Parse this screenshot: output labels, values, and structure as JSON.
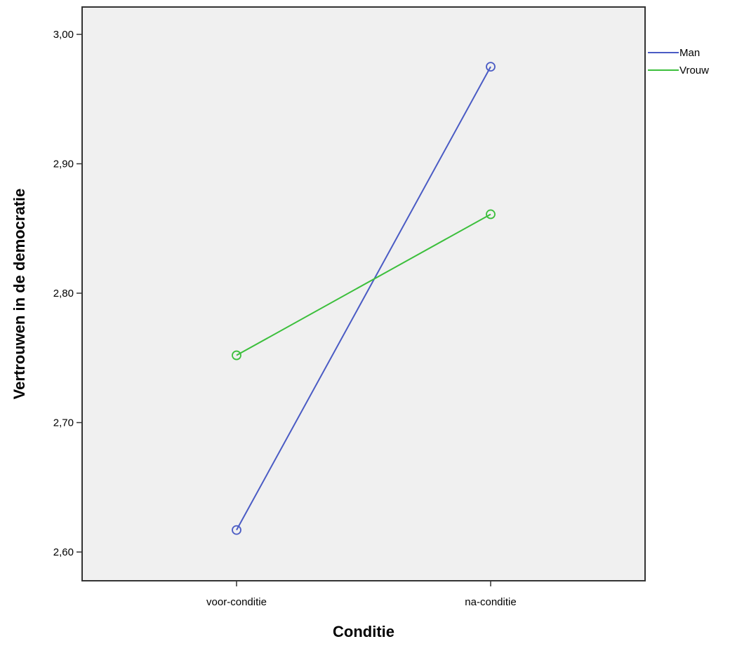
{
  "chart_data": {
    "type": "line",
    "categories": [
      "voor-conditie",
      "na-conditie"
    ],
    "series": [
      {
        "name": "Man",
        "values": [
          2.617,
          2.975
        ],
        "color": "#4a5bc4"
      },
      {
        "name": "Vrouw",
        "values": [
          2.752,
          2.861
        ],
        "color": "#3cbf3c"
      }
    ],
    "xlabel": "Conditie",
    "ylabel": "Vertrouwen in de democratie",
    "ylim": [
      2.58,
      3.022
    ],
    "yticks": [
      2.6,
      2.7,
      2.8,
      2.9,
      3.0
    ],
    "ytick_labels": [
      "2,60",
      "2,70",
      "2,80",
      "2,90",
      "3,00"
    ],
    "marker": "circle-open",
    "legend_position": "right",
    "grid": false,
    "plot_background": "#f0f0f0"
  }
}
